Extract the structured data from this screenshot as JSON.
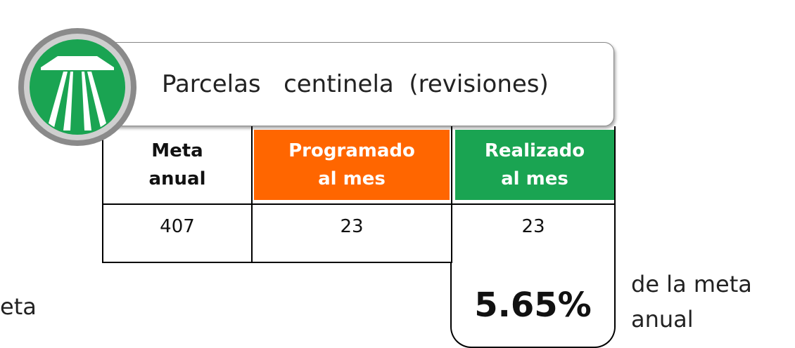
{
  "title": "Parcelas   centinela  (revisiones)",
  "table": {
    "headers": [
      [
        "Meta",
        "anual"
      ],
      [
        "Programado",
        "al mes"
      ],
      [
        "Realizado",
        "al mes"
      ]
    ],
    "rows": [
      [
        "407",
        "23",
        "23"
      ]
    ]
  },
  "left_fragment": "eta",
  "percentage": "5.65%",
  "note": [
    "de la meta",
    "anual"
  ]
}
